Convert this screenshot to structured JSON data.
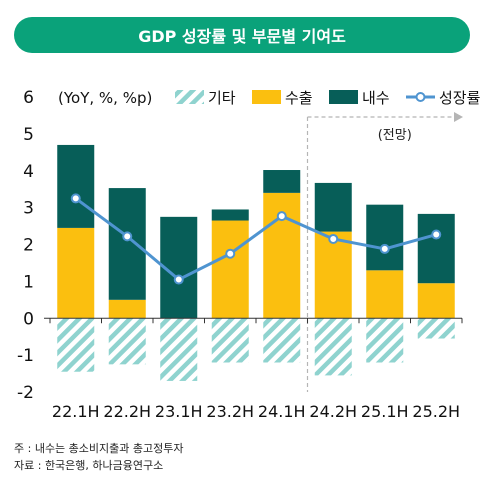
{
  "title": "GDP 성장률 및 부문별 기여도",
  "chart_data": {
    "type": "bar",
    "stacked": true,
    "unit_label": "(YoY, %, %p)",
    "categories": [
      "22.1H",
      "22.2H",
      "23.1H",
      "23.2H",
      "24.1H",
      "24.2H",
      "25.1H",
      "25.2H"
    ],
    "series": [
      {
        "name": "기타",
        "type": "bar",
        "color": "#8fd3cf",
        "pattern": "diagonal-hatch",
        "values": [
          -1.45,
          -1.25,
          -1.7,
          -1.2,
          -1.2,
          -1.55,
          -1.2,
          -0.55
        ]
      },
      {
        "name": "수출",
        "type": "bar",
        "color": "#fbbf0f",
        "values": [
          2.45,
          0.5,
          0.0,
          2.65,
          3.4,
          2.35,
          1.3,
          0.95
        ]
      },
      {
        "name": "내수",
        "type": "bar",
        "color": "#075e58",
        "values": [
          2.25,
          3.03,
          2.75,
          0.3,
          0.62,
          1.32,
          1.78,
          1.88
        ]
      },
      {
        "name": "성장률",
        "type": "line",
        "color": "#4f94d0",
        "values": [
          3.25,
          2.22,
          1.05,
          1.75,
          2.77,
          2.15,
          1.88,
          2.27
        ]
      }
    ],
    "ylim": [
      -2,
      6
    ],
    "yticks": [
      -2,
      -1,
      0,
      1,
      2,
      3,
      4,
      5,
      6
    ],
    "forecast_label": "(전망)",
    "forecast_start_index": 5,
    "legend_position": "top"
  },
  "notes": {
    "note1": "주 : 내수는 총소비지출과 총고정투자",
    "note2": "자료 : 한국은행, 하나금융연구소"
  }
}
